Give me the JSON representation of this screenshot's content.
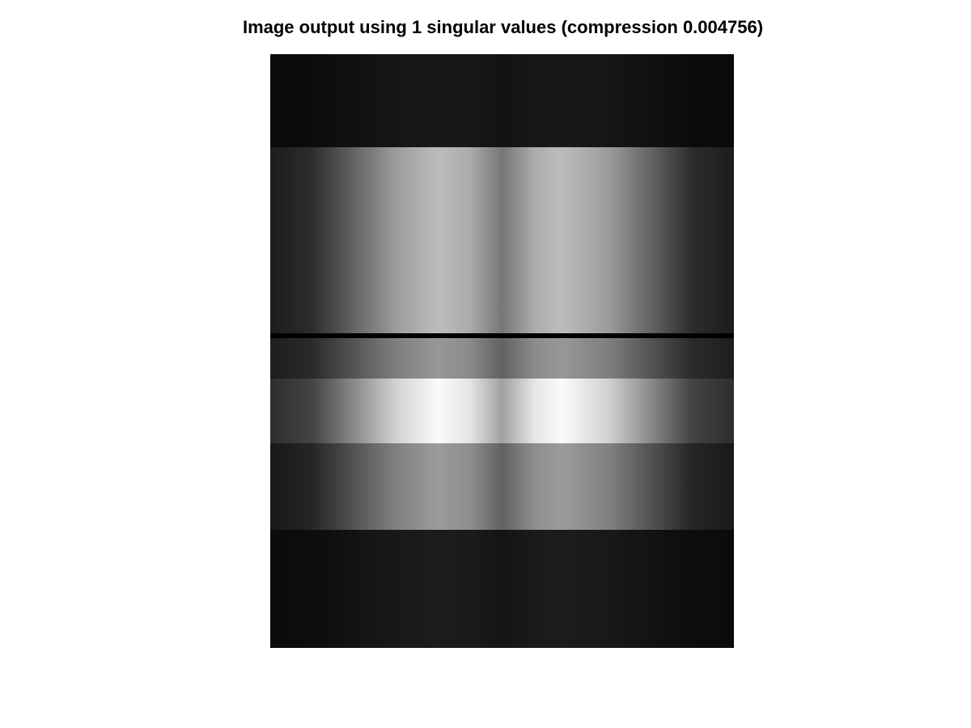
{
  "figure": {
    "title": "Image output using 1 singular values (compression 0.004756)"
  },
  "image": {
    "colormap": "grayscale",
    "description_kind": "rank-1 SVD reconstruction (outer product of column profile and row profile)"
  }
}
